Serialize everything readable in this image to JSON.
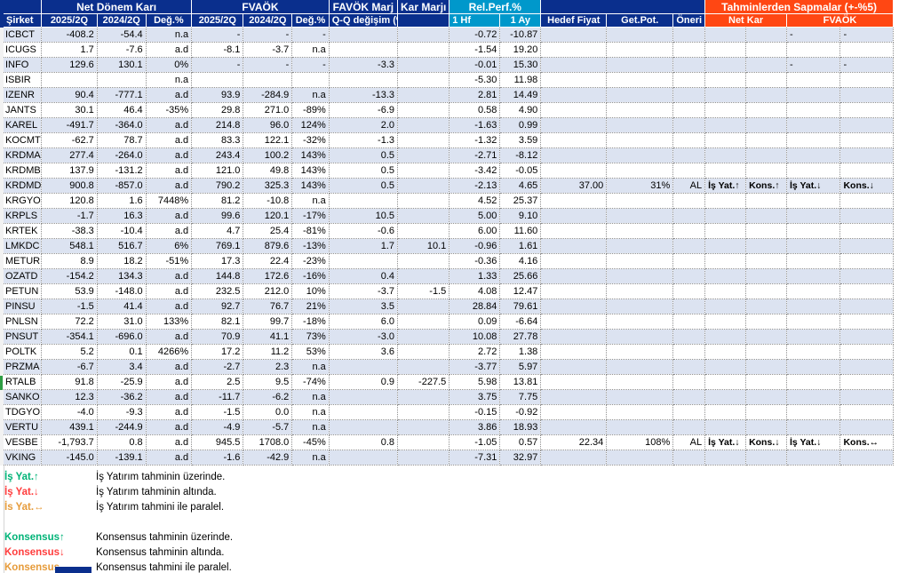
{
  "colors": {
    "header_navy": "#0a2f8d",
    "header_teal": "#0098cb",
    "header_orange": "#ff4713",
    "row_stripe": "#dce3f1",
    "up_green": "#00b377",
    "down_red": "#ff3d3d",
    "flat_orange": "#e69b3a",
    "selection_green": "#2f9e44"
  },
  "header": {
    "sirket": "Şirket",
    "net_donem_kari": "Net Dönem Karı",
    "fvaok": "FVAÖK",
    "favok_marj": "FAVÖK Marj",
    "kar_marji": "Kar Marjı",
    "rel_perf": "Rel.Perf.%",
    "tahminler": "Tahminlerden Sapmalar (+-%5)",
    "q2025": "2025/2Q",
    "q2024": "2024/2Q",
    "deg": "Değ.%",
    "qq": "Q-Q değişim (%)",
    "hf": "1 Hf",
    "ay": "1 Ay",
    "hedef": "Hedef Fiyat",
    "getpot": "Get.Pot.",
    "oneri": "Öneri",
    "net_kar": "Net Kar",
    "fvaok_sap": "FVAÖK"
  },
  "rows": [
    {
      "t": "ICBCT",
      "v": [
        "-408.2",
        "-54.4",
        "n.a",
        "-",
        "-",
        "-",
        "",
        "",
        "-0.72",
        "-10.87",
        "",
        "",
        "",
        "",
        "",
        {
          "t": "-",
          "c": "plain"
        },
        {
          "t": "-",
          "c": "plain"
        }
      ]
    },
    {
      "t": "ICUGS",
      "v": [
        "1.7",
        "-7.6",
        "a.d",
        "-8.1",
        "-3.7",
        "n.a",
        "",
        "",
        "-1.54",
        "19.20",
        "",
        "",
        "",
        "",
        "",
        "",
        ""
      ]
    },
    {
      "t": "INFO",
      "v": [
        "129.6",
        "130.1",
        "0%",
        "-",
        "-",
        "-",
        "-3.3",
        "",
        "-0.01",
        "15.30",
        "",
        "",
        "",
        "",
        "",
        {
          "t": "-",
          "c": "plain"
        },
        {
          "t": "-",
          "c": "plain"
        }
      ]
    },
    {
      "t": "ISBIR",
      "v": [
        "",
        "",
        "n.a",
        "",
        "",
        "",
        "",
        "",
        "-5.30",
        "11.98",
        "",
        "",
        "",
        "",
        "",
        "",
        ""
      ]
    },
    {
      "t": "IZENR",
      "v": [
        "90.4",
        "-777.1",
        "a.d",
        "93.9",
        "-284.9",
        "n.a",
        "-13.3",
        "",
        "2.81",
        "14.49",
        "",
        "",
        "",
        "",
        "",
        "",
        ""
      ]
    },
    {
      "t": "JANTS",
      "v": [
        "30.1",
        "46.4",
        "-35%",
        "29.8",
        "271.0",
        "-89%",
        "-6.9",
        "",
        "0.58",
        "4.90",
        "",
        "",
        "",
        "",
        "",
        "",
        ""
      ]
    },
    {
      "t": "KAREL",
      "v": [
        "-491.7",
        "-364.0",
        "a.d",
        "214.8",
        "96.0",
        "124%",
        "2.0",
        "",
        "-1.63",
        "0.99",
        "",
        "",
        "",
        "",
        "",
        "",
        ""
      ]
    },
    {
      "t": "KOCMT",
      "v": [
        "-62.7",
        "78.7",
        "a.d",
        "83.3",
        "122.1",
        "-32%",
        "-1.3",
        "",
        "-1.32",
        "3.59",
        "",
        "",
        "",
        "",
        "",
        "",
        ""
      ]
    },
    {
      "t": "KRDMA",
      "v": [
        "277.4",
        "-264.0",
        "a.d",
        "243.4",
        "100.2",
        "143%",
        "0.5",
        "",
        "-2.71",
        "-8.12",
        "",
        "",
        "",
        "",
        "",
        "",
        ""
      ]
    },
    {
      "t": "KRDMB",
      "v": [
        "137.9",
        "-131.2",
        "a.d",
        "121.0",
        "49.8",
        "143%",
        "0.5",
        "",
        "-3.42",
        "-0.05",
        "",
        "",
        "",
        "",
        "",
        "",
        ""
      ]
    },
    {
      "t": "KRDMD",
      "v": [
        "900.8",
        "-857.0",
        "a.d",
        "790.2",
        "325.3",
        "143%",
        "0.5",
        "",
        "-2.13",
        "4.65",
        "37.00",
        "31%",
        "AL",
        {
          "t": "İş Yat.↑",
          "c": "up"
        },
        {
          "t": "Kons.↑",
          "c": "up"
        },
        {
          "t": "İş Yat.↓",
          "c": "down"
        },
        {
          "t": "Kons.↓",
          "c": "down"
        }
      ]
    },
    {
      "t": "KRGYO",
      "v": [
        "120.8",
        "1.6",
        "7448%",
        "81.2",
        "-10.8",
        "n.a",
        "",
        "",
        "4.52",
        "25.37",
        "",
        "",
        "",
        "",
        "",
        "",
        ""
      ]
    },
    {
      "t": "KRPLS",
      "v": [
        "-1.7",
        "16.3",
        "a.d",
        "99.6",
        "120.1",
        "-17%",
        "10.5",
        "",
        "5.00",
        "9.10",
        "",
        "",
        "",
        "",
        "",
        "",
        ""
      ]
    },
    {
      "t": "KRTEK",
      "v": [
        "-38.3",
        "-10.4",
        "a.d",
        "4.7",
        "25.4",
        "-81%",
        "-0.6",
        "",
        "6.00",
        "11.60",
        "",
        "",
        "",
        "",
        "",
        "",
        ""
      ]
    },
    {
      "t": "LMKDC",
      "v": [
        "548.1",
        "516.7",
        "6%",
        "769.1",
        "879.6",
        "-13%",
        "1.7",
        "10.1",
        "-0.96",
        "1.61",
        "",
        "",
        "",
        "",
        "",
        "",
        ""
      ]
    },
    {
      "t": "METUR",
      "v": [
        "8.9",
        "18.2",
        "-51%",
        "17.3",
        "22.4",
        "-23%",
        "",
        "",
        "-0.36",
        "4.16",
        "",
        "",
        "",
        "",
        "",
        "",
        ""
      ]
    },
    {
      "t": "OZATD",
      "v": [
        "-154.2",
        "134.3",
        "a.d",
        "144.8",
        "172.6",
        "-16%",
        "0.4",
        "",
        "1.33",
        "25.66",
        "",
        "",
        "",
        "",
        "",
        "",
        ""
      ]
    },
    {
      "t": "PETUN",
      "v": [
        "53.9",
        "-148.0",
        "a.d",
        "232.5",
        "212.0",
        "10%",
        "-3.7",
        "-1.5",
        "4.08",
        "12.47",
        "",
        "",
        "",
        "",
        "",
        "",
        ""
      ]
    },
    {
      "t": "PINSU",
      "v": [
        "-1.5",
        "41.4",
        "a.d",
        "92.7",
        "76.7",
        "21%",
        "3.5",
        "",
        "28.84",
        "79.61",
        "",
        "",
        "",
        "",
        "",
        "",
        ""
      ]
    },
    {
      "t": "PNLSN",
      "v": [
        "72.2",
        "31.0",
        "133%",
        "82.1",
        "99.7",
        "-18%",
        "6.0",
        "",
        "0.09",
        "-6.64",
        "",
        "",
        "",
        "",
        "",
        "",
        ""
      ]
    },
    {
      "t": "PNSUT",
      "v": [
        "-354.1",
        "-696.0",
        "a.d",
        "70.9",
        "41.1",
        "73%",
        "-3.0",
        "",
        "10.08",
        "27.78",
        "",
        "",
        "",
        "",
        "",
        "",
        ""
      ]
    },
    {
      "t": "POLTK",
      "v": [
        "5.2",
        "0.1",
        "4266%",
        "17.2",
        "11.2",
        "53%",
        "3.6",
        "",
        "2.72",
        "1.38",
        "",
        "",
        "",
        "",
        "",
        "",
        ""
      ]
    },
    {
      "t": "PRZMA",
      "v": [
        "-6.7",
        "3.4",
        "a.d",
        "-2.7",
        "2.3",
        "n.a",
        "",
        "",
        "-3.77",
        "5.97",
        "",
        "",
        "",
        "",
        "",
        "",
        ""
      ]
    },
    {
      "t": "RTALB",
      "v": [
        "91.8",
        "-25.9",
        "a.d",
        "2.5",
        "9.5",
        "-74%",
        "0.9",
        "-227.5",
        "5.98",
        "13.81",
        "",
        "",
        "",
        "",
        "",
        "",
        ""
      ]
    },
    {
      "t": "SANKO",
      "v": [
        "12.3",
        "-36.2",
        "a.d",
        "-11.7",
        "-6.2",
        "n.a",
        "",
        "",
        "3.75",
        "7.75",
        "",
        "",
        "",
        "",
        "",
        "",
        ""
      ]
    },
    {
      "t": "TDGYO",
      "v": [
        "-4.0",
        "-9.3",
        "a.d",
        "-1.5",
        "0.0",
        "n.a",
        "",
        "",
        "-0.15",
        "-0.92",
        "",
        "",
        "",
        "",
        "",
        "",
        ""
      ]
    },
    {
      "t": "VERTU",
      "v": [
        "439.1",
        "-244.9",
        "a.d",
        "-4.9",
        "-5.7",
        "n.a",
        "",
        "",
        "3.86",
        "18.93",
        "",
        "",
        "",
        "",
        "",
        "",
        ""
      ]
    },
    {
      "t": "VESBE",
      "v": [
        "-1,793.7",
        "0.8",
        "a.d",
        "945.5",
        "1708.0",
        "-45%",
        "0.8",
        "",
        "-1.05",
        "0.57",
        "22.34",
        "108%",
        "AL",
        {
          "t": "İş Yat.↓",
          "c": "down"
        },
        {
          "t": "Kons.↓",
          "c": "down"
        },
        {
          "t": "İş Yat.↓",
          "c": "down"
        },
        {
          "t": "Kons.↔",
          "c": "flat"
        }
      ]
    },
    {
      "t": "VKING",
      "v": [
        "-145.0",
        "-139.1",
        "a.d",
        "-1.6",
        "-42.9",
        "n.a",
        "",
        "",
        "-7.31",
        "32.97",
        "",
        "",
        "",
        "",
        "",
        "",
        ""
      ]
    }
  ],
  "legend": [
    {
      "label": "İş Yat.↑",
      "c": "up",
      "desc": "İş Yatırım tahminin üzerinde."
    },
    {
      "label": "İş Yat.↓",
      "c": "down",
      "desc": "İş Yatırım tahminin altında."
    },
    {
      "label": "İs Yat.↔",
      "c": "flat",
      "desc": "İş Yatırım tahmini ile paralel."
    },
    {
      "label": "Konsensus↑",
      "c": "up",
      "desc": "Konsensus tahminin üzerinde."
    },
    {
      "label": "Konsensus↓",
      "c": "down",
      "desc": "Konsensus tahminin altında."
    },
    {
      "label": "Konsensus↔",
      "c": "flat",
      "desc": "Konsensus tahmini ile paralel."
    }
  ]
}
